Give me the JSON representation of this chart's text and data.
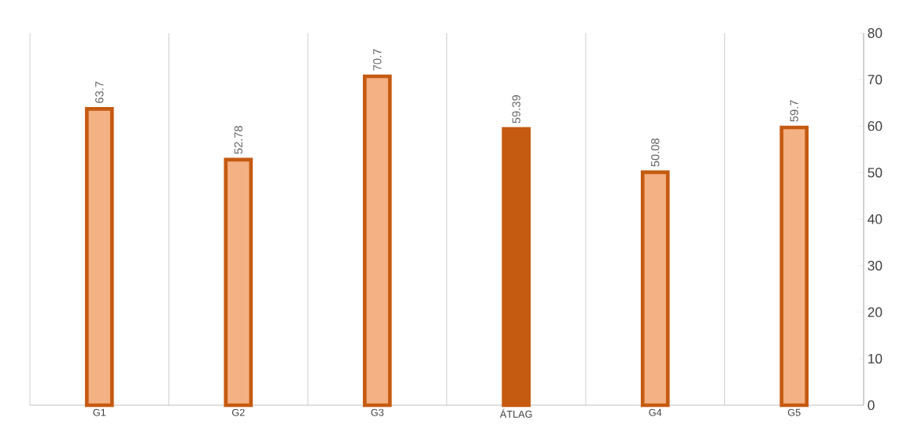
{
  "chart_data": {
    "type": "bar",
    "categories": [
      "G1",
      "G2",
      "G3",
      "ÁTLAG",
      "G4",
      "G5"
    ],
    "values": [
      63.7,
      52.78,
      70.7,
      59.39,
      50.08,
      59.7
    ],
    "colors": [
      "#f4b183",
      "#f4b183",
      "#f4b183",
      "#c55a11",
      "#f4b183",
      "#f4b183"
    ],
    "color": "#c55a11",
    "ylim": [
      0,
      80
    ],
    "yticks": [
      0,
      10,
      20,
      30,
      40,
      50,
      60,
      70,
      80
    ],
    "grid": "x",
    "data_labels": true
  }
}
